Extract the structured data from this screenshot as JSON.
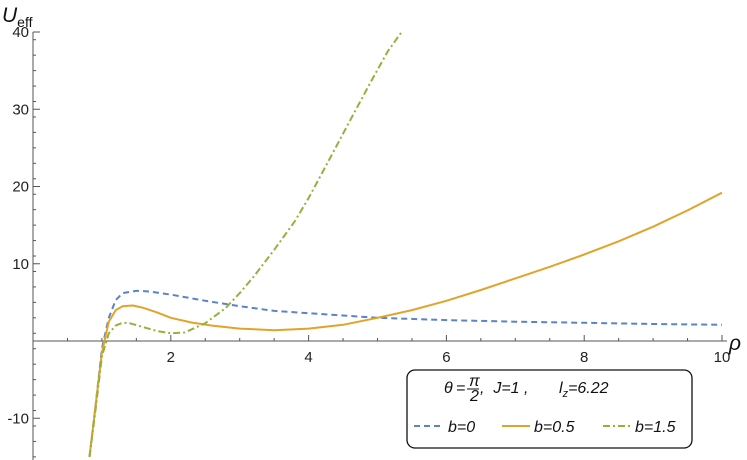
{
  "chart_data": {
    "type": "line",
    "xlabel": "ρ",
    "ylabel_main": "U",
    "ylabel_sub": "eff",
    "xlim": [
      0,
      10
    ],
    "ylim": [
      -15,
      40
    ],
    "x_ticks": [
      2,
      4,
      6,
      8,
      10
    ],
    "y_ticks": [
      -10,
      10,
      20,
      30,
      40
    ],
    "grid": false,
    "legend_placement": "bottom-right",
    "legend": {
      "params": {
        "theta_sym": "θ",
        "eq": "=",
        "pi": "π",
        "two": "2",
        "rest_j": ",  J=1 ,",
        "lz_main": "l",
        "lz_sub": "z",
        "lz_val": "=6.22"
      }
    },
    "series": [
      {
        "name": "b=0",
        "color": "#5b84c4",
        "dash": "dashed",
        "points": [
          [
            0.82,
            -15.0
          ],
          [
            0.9,
            -9.0
          ],
          [
            1.0,
            -1.0
          ],
          [
            1.1,
            3.0
          ],
          [
            1.2,
            5.3
          ],
          [
            1.3,
            6.2
          ],
          [
            1.5,
            6.5
          ],
          [
            1.7,
            6.4
          ],
          [
            2.0,
            6.0
          ],
          [
            2.5,
            5.2
          ],
          [
            3.0,
            4.5
          ],
          [
            3.5,
            3.9
          ],
          [
            4.0,
            3.6
          ],
          [
            5.0,
            3.0
          ],
          [
            6.0,
            2.7
          ],
          [
            7.0,
            2.5
          ],
          [
            8.0,
            2.35
          ],
          [
            9.0,
            2.2
          ],
          [
            10.0,
            2.1
          ]
        ]
      },
      {
        "name": "b=0.5",
        "color": "#e2a32a",
        "dash": "solid",
        "points": [
          [
            0.82,
            -15.0
          ],
          [
            0.9,
            -9.0
          ],
          [
            1.0,
            -1.5
          ],
          [
            1.1,
            2.5
          ],
          [
            1.2,
            4.0
          ],
          [
            1.3,
            4.5
          ],
          [
            1.45,
            4.6
          ],
          [
            1.6,
            4.3
          ],
          [
            1.8,
            3.7
          ],
          [
            2.0,
            3.0
          ],
          [
            2.3,
            2.4
          ],
          [
            2.6,
            2.0
          ],
          [
            3.0,
            1.6
          ],
          [
            3.5,
            1.4
          ],
          [
            4.0,
            1.6
          ],
          [
            4.5,
            2.1
          ],
          [
            5.0,
            3.0
          ],
          [
            5.5,
            4.0
          ],
          [
            6.0,
            5.2
          ],
          [
            6.5,
            6.6
          ],
          [
            7.0,
            8.1
          ],
          [
            7.5,
            9.6
          ],
          [
            8.0,
            11.2
          ],
          [
            8.5,
            12.9
          ],
          [
            9.0,
            14.8
          ],
          [
            9.5,
            16.9
          ],
          [
            10.0,
            19.2
          ]
        ]
      },
      {
        "name": "b=1.5",
        "color": "#94b23a",
        "dash": "dashdot",
        "points": [
          [
            0.82,
            -15.0
          ],
          [
            0.9,
            -9.5
          ],
          [
            1.0,
            -2.0
          ],
          [
            1.1,
            1.0
          ],
          [
            1.2,
            2.0
          ],
          [
            1.3,
            2.35
          ],
          [
            1.4,
            2.3
          ],
          [
            1.6,
            1.8
          ],
          [
            1.8,
            1.3
          ],
          [
            2.0,
            1.0
          ],
          [
            2.2,
            1.1
          ],
          [
            2.5,
            2.3
          ],
          [
            2.8,
            4.3
          ],
          [
            3.0,
            6.2
          ],
          [
            3.2,
            8.3
          ],
          [
            3.5,
            11.8
          ],
          [
            3.8,
            15.5
          ],
          [
            4.0,
            18.5
          ],
          [
            4.3,
            23.5
          ],
          [
            4.6,
            28.5
          ],
          [
            4.9,
            33.5
          ],
          [
            5.15,
            37.5
          ],
          [
            5.35,
            40.0
          ]
        ]
      }
    ]
  }
}
